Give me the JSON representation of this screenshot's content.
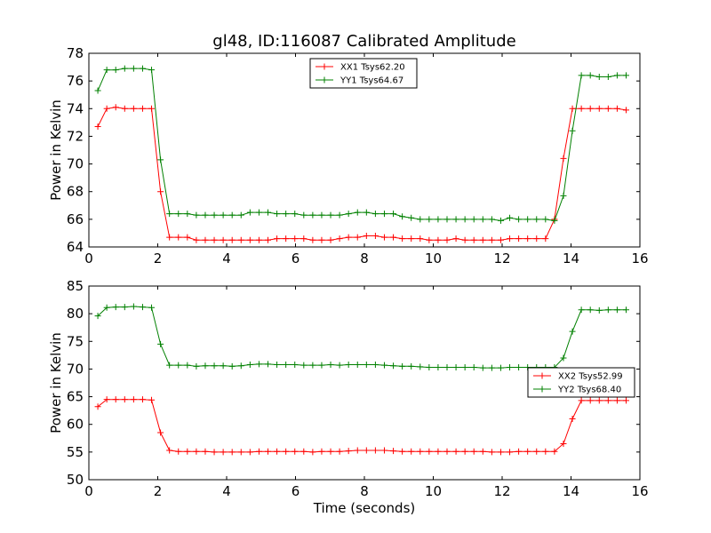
{
  "chart_data": [
    {
      "type": "line",
      "title": "gl48, ID:116087 Calibrated Amplitude",
      "xlabel": "",
      "ylabel": "Power in Kelvin",
      "xlim": [
        0,
        16
      ],
      "ylim": [
        64,
        78
      ],
      "xticks": [
        0,
        2,
        4,
        6,
        8,
        10,
        12,
        14,
        16
      ],
      "yticks": [
        64,
        66,
        68,
        70,
        72,
        74,
        76,
        78
      ],
      "legend_position": "upper-center",
      "x": [
        0.26,
        0.52,
        0.78,
        1.04,
        1.3,
        1.56,
        1.82,
        2.08,
        2.34,
        2.6,
        2.86,
        3.12,
        3.38,
        3.64,
        3.9,
        4.16,
        4.42,
        4.68,
        4.94,
        5.2,
        5.46,
        5.72,
        5.98,
        6.24,
        6.5,
        6.76,
        7.02,
        7.28,
        7.54,
        7.8,
        8.06,
        8.32,
        8.58,
        8.84,
        9.1,
        9.36,
        9.62,
        9.88,
        10.14,
        10.4,
        10.66,
        10.92,
        11.18,
        11.44,
        11.7,
        11.96,
        12.22,
        12.48,
        12.74,
        13.0,
        13.26,
        13.52,
        13.78,
        14.04,
        14.3,
        14.56,
        14.82,
        15.08,
        15.34,
        15.6
      ],
      "series": [
        {
          "name": "XX1 Tsys62.20",
          "color": "#ff0000",
          "values": [
            72.7,
            74.0,
            74.1,
            74.0,
            74.0,
            74.0,
            74.0,
            68.0,
            64.7,
            64.7,
            64.7,
            64.5,
            64.5,
            64.5,
            64.5,
            64.5,
            64.5,
            64.5,
            64.5,
            64.5,
            64.6,
            64.6,
            64.6,
            64.6,
            64.5,
            64.5,
            64.5,
            64.6,
            64.7,
            64.7,
            64.8,
            64.8,
            64.7,
            64.7,
            64.6,
            64.6,
            64.6,
            64.5,
            64.5,
            64.5,
            64.6,
            64.5,
            64.5,
            64.5,
            64.5,
            64.5,
            64.6,
            64.6,
            64.6,
            64.6,
            64.6,
            66.0,
            70.4,
            74.0,
            74.0,
            74.0,
            74.0,
            74.0,
            74.0,
            73.9
          ]
        },
        {
          "name": "YY1 Tsys64.67",
          "color": "#008000",
          "values": [
            75.3,
            76.8,
            76.8,
            76.9,
            76.9,
            76.9,
            76.8,
            70.3,
            66.4,
            66.4,
            66.4,
            66.3,
            66.3,
            66.3,
            66.3,
            66.3,
            66.3,
            66.5,
            66.5,
            66.5,
            66.4,
            66.4,
            66.4,
            66.3,
            66.3,
            66.3,
            66.3,
            66.3,
            66.4,
            66.5,
            66.5,
            66.4,
            66.4,
            66.4,
            66.2,
            66.1,
            66.0,
            66.0,
            66.0,
            66.0,
            66.0,
            66.0,
            66.0,
            66.0,
            66.0,
            65.9,
            66.1,
            66.0,
            66.0,
            66.0,
            66.0,
            65.9,
            67.7,
            72.4,
            76.4,
            76.4,
            76.3,
            76.3,
            76.4,
            76.4
          ]
        }
      ]
    },
    {
      "type": "line",
      "title": "",
      "xlabel": "Time (seconds)",
      "ylabel": "Power in Kelvin",
      "xlim": [
        0,
        16
      ],
      "ylim": [
        50,
        85
      ],
      "xticks": [
        0,
        2,
        4,
        6,
        8,
        10,
        12,
        14,
        16
      ],
      "yticks": [
        50,
        55,
        60,
        65,
        70,
        75,
        80,
        85
      ],
      "legend_position": "center-right",
      "x": [
        0.26,
        0.52,
        0.78,
        1.04,
        1.3,
        1.56,
        1.82,
        2.08,
        2.34,
        2.6,
        2.86,
        3.12,
        3.38,
        3.64,
        3.9,
        4.16,
        4.42,
        4.68,
        4.94,
        5.2,
        5.46,
        5.72,
        5.98,
        6.24,
        6.5,
        6.76,
        7.02,
        7.28,
        7.54,
        7.8,
        8.06,
        8.32,
        8.58,
        8.84,
        9.1,
        9.36,
        9.62,
        9.88,
        10.14,
        10.4,
        10.66,
        10.92,
        11.18,
        11.44,
        11.7,
        11.96,
        12.22,
        12.48,
        12.74,
        13.0,
        13.26,
        13.52,
        13.78,
        14.04,
        14.3,
        14.56,
        14.82,
        15.08,
        15.34,
        15.6
      ],
      "series": [
        {
          "name": "XX2 Tsys52.99",
          "color": "#ff0000",
          "values": [
            63.2,
            64.5,
            64.5,
            64.5,
            64.5,
            64.5,
            64.4,
            58.5,
            55.3,
            55.1,
            55.1,
            55.1,
            55.1,
            55.0,
            55.0,
            55.0,
            55.0,
            55.0,
            55.1,
            55.1,
            55.1,
            55.1,
            55.1,
            55.1,
            55.0,
            55.1,
            55.1,
            55.1,
            55.2,
            55.3,
            55.3,
            55.3,
            55.3,
            55.2,
            55.1,
            55.1,
            55.1,
            55.1,
            55.1,
            55.1,
            55.1,
            55.1,
            55.1,
            55.1,
            55.0,
            55.0,
            55.0,
            55.1,
            55.1,
            55.1,
            55.1,
            55.1,
            56.5,
            61.0,
            64.3,
            64.3,
            64.3,
            64.3,
            64.3,
            64.3
          ]
        },
        {
          "name": "YY2 Tsys68.40",
          "color": "#008000",
          "values": [
            79.6,
            81.1,
            81.2,
            81.2,
            81.3,
            81.2,
            81.1,
            74.5,
            70.7,
            70.7,
            70.7,
            70.5,
            70.6,
            70.6,
            70.6,
            70.5,
            70.6,
            70.8,
            70.9,
            70.9,
            70.8,
            70.8,
            70.8,
            70.7,
            70.7,
            70.7,
            70.8,
            70.7,
            70.8,
            70.8,
            70.8,
            70.8,
            70.7,
            70.6,
            70.5,
            70.5,
            70.4,
            70.3,
            70.3,
            70.3,
            70.3,
            70.3,
            70.3,
            70.2,
            70.2,
            70.2,
            70.3,
            70.3,
            70.3,
            70.3,
            70.3,
            70.3,
            72.0,
            76.8,
            80.7,
            80.7,
            80.6,
            80.7,
            80.7,
            80.7
          ]
        }
      ]
    }
  ]
}
